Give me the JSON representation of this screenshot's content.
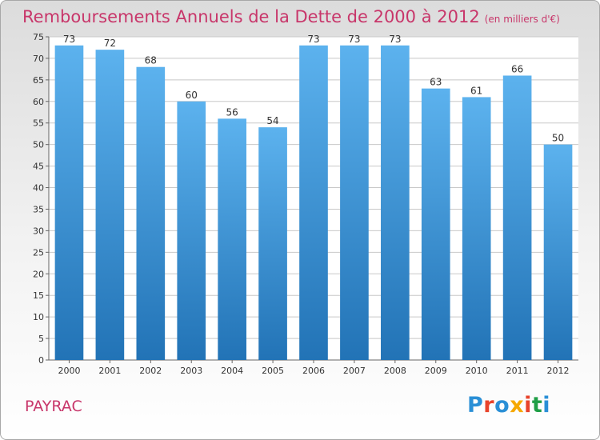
{
  "title": "Remboursements Annuels de la Dette de 2000 à 2012",
  "unit": "(en milliers d'€)",
  "place": "PAYRAC",
  "logo": {
    "text": "Proxiti",
    "colors": [
      "#2a8fd6",
      "#e8432b",
      "#2a8fd6",
      "#f6a800",
      "#e8432b",
      "#1f9e46",
      "#2a8fd6"
    ]
  },
  "colors": {
    "bar_light": "#5cb2ee",
    "bar_dark": "#2273b6",
    "title": "#c8366a",
    "grid": "#c8c8c8"
  },
  "chart_data": {
    "type": "bar",
    "categories": [
      "2000",
      "2001",
      "2002",
      "2003",
      "2004",
      "2005",
      "2006",
      "2007",
      "2008",
      "2009",
      "2010",
      "2011",
      "2012"
    ],
    "values": [
      73,
      72,
      68,
      60,
      56,
      54,
      73,
      73,
      73,
      63,
      61,
      66,
      50
    ],
    "ylim": [
      0,
      75
    ],
    "yticks": [
      0,
      5,
      10,
      15,
      20,
      25,
      30,
      35,
      40,
      45,
      50,
      55,
      60,
      65,
      70,
      75
    ],
    "grid": true,
    "data_labels": true
  }
}
